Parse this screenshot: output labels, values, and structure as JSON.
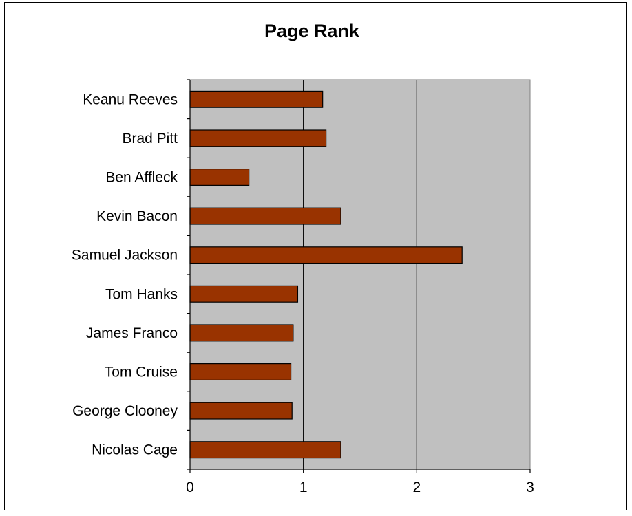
{
  "chart_data": {
    "type": "bar",
    "orientation": "horizontal",
    "title": "Page Rank",
    "xlabel": "",
    "ylabel": "",
    "categories": [
      "Keanu Reeves",
      "Brad Pitt",
      "Ben Affleck",
      "Kevin Bacon",
      "Samuel Jackson",
      "Tom Hanks",
      "James Franco",
      "Tom Cruise",
      "George Clooney",
      "Nicolas Cage"
    ],
    "values": [
      1.17,
      1.2,
      0.52,
      1.33,
      2.4,
      0.95,
      0.91,
      0.89,
      0.9,
      1.33
    ],
    "xlim": [
      0,
      3
    ],
    "xticks": [
      "0",
      "1",
      "2",
      "3"
    ],
    "grid": true,
    "colors": {
      "bar": "#993300",
      "plot_bg": "#c0c0c0",
      "grid": "#000000"
    }
  }
}
